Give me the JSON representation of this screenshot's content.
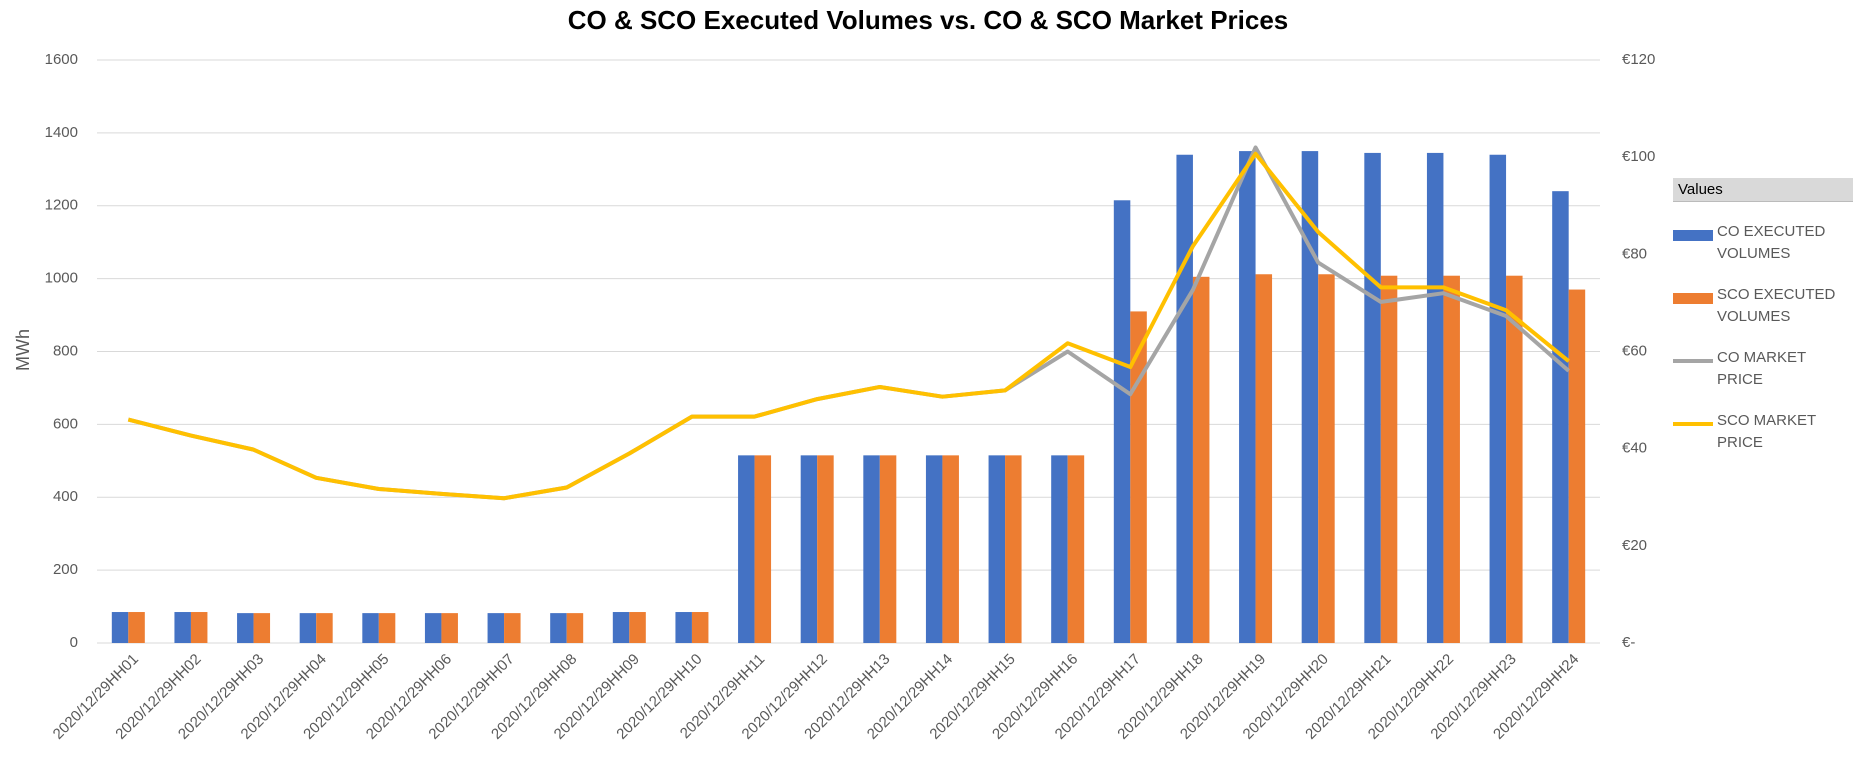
{
  "chart_data": {
    "type": "bar-line",
    "title": "CO & SCO Executed Volumes vs. CO & SCO Market Prices",
    "ylabel": "MWh",
    "legend_title": "Values",
    "categories": [
      "2020/12/29HH01",
      "2020/12/29HH02",
      "2020/12/29HH03",
      "2020/12/29HH04",
      "2020/12/29HH05",
      "2020/12/29HH06",
      "2020/12/29HH07",
      "2020/12/29HH08",
      "2020/12/29HH09",
      "2020/12/29HH10",
      "2020/12/29HH11",
      "2020/12/29HH12",
      "2020/12/29HH13",
      "2020/12/29HH14",
      "2020/12/29HH15",
      "2020/12/29HH16",
      "2020/12/29HH17",
      "2020/12/29HH18",
      "2020/12/29HH19",
      "2020/12/29HH20",
      "2020/12/29HH21",
      "2020/12/29HH22",
      "2020/12/29HH23",
      "2020/12/29HH24"
    ],
    "series": [
      {
        "name": "CO EXECUTED VOLUMES",
        "type": "bar",
        "color": "#4472c4",
        "values": [
          85,
          85,
          82,
          82,
          82,
          82,
          82,
          82,
          85,
          85,
          515,
          515,
          515,
          515,
          515,
          515,
          1215,
          1340,
          1350,
          1350,
          1345,
          1345,
          1340,
          1240
        ]
      },
      {
        "name": "SCO EXECUTED VOLUMES",
        "type": "bar",
        "color": "#ed7d31",
        "values": [
          85,
          85,
          82,
          82,
          82,
          82,
          82,
          82,
          85,
          85,
          515,
          515,
          515,
          515,
          515,
          515,
          910,
          1005,
          1012,
          1012,
          1008,
          1008,
          1008,
          970
        ]
      },
      {
        "name": "CO MARKET PRICE",
        "type": "line",
        "axis": "y2",
        "color": "#a5a5a5",
        "values": [
          46,
          42.7,
          39.8,
          34,
          31.7,
          30.7,
          29.8,
          32,
          39,
          46.6,
          46.6,
          50.2,
          52.7,
          50.7,
          52,
          60,
          51.2,
          72.7,
          102,
          78.3,
          70.2,
          72,
          67.3,
          56
        ]
      },
      {
        "name": "SCO MARKET PRICE",
        "type": "line",
        "axis": "y2",
        "color": "#ffc000",
        "values": [
          46,
          42.7,
          39.8,
          34,
          31.7,
          30.7,
          29.8,
          32,
          39,
          46.6,
          46.6,
          50.2,
          52.7,
          50.7,
          52,
          61.7,
          56.8,
          81.7,
          100.7,
          84.6,
          73.2,
          73.2,
          68.5,
          58
        ]
      }
    ],
    "ylim": [
      0,
      1600
    ],
    "yticks": [
      0,
      200,
      400,
      600,
      800,
      1000,
      1200,
      1400,
      1600
    ],
    "y2lim": [
      0,
      120
    ],
    "y2ticks": [
      {
        "value": 0,
        "label": "€-"
      },
      {
        "value": 20,
        "label": "€20"
      },
      {
        "value": 40,
        "label": "€40"
      },
      {
        "value": 60,
        "label": "€60"
      },
      {
        "value": 80,
        "label": "€80"
      },
      {
        "value": 100,
        "label": "€100"
      },
      {
        "value": 120,
        "label": "€120"
      }
    ],
    "grid": true,
    "legend": "right"
  }
}
